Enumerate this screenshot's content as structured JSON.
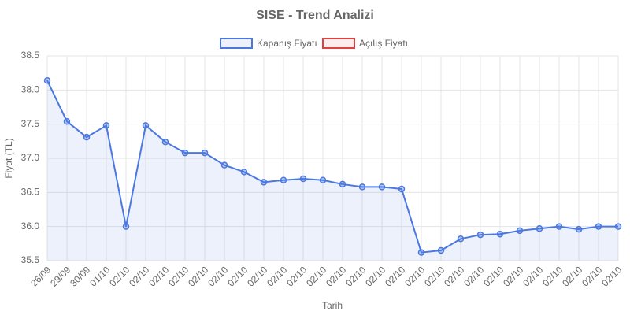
{
  "chart_data": {
    "type": "line",
    "title": "SISE - Trend Analizi",
    "x_label": "Tarih",
    "y_label": "Fiyat (TL)",
    "categories": [
      "26/09",
      "29/09",
      "30/09",
      "01/10",
      "02/10",
      "02/10",
      "02/10",
      "02/10",
      "02/10",
      "02/10",
      "02/10",
      "02/10",
      "02/10",
      "02/10",
      "02/10",
      "02/10",
      "02/10",
      "02/10",
      "02/10",
      "02/10",
      "02/10",
      "02/10",
      "02/10",
      "02/10",
      "02/10",
      "02/10",
      "02/10",
      "02/10",
      "02/10",
      "02/10"
    ],
    "series": [
      {
        "name": "Kapanış Fiyatı",
        "color": "#4a78e0",
        "fill": "rgba(74,120,224,0.1)",
        "values": [
          38.14,
          37.54,
          37.31,
          37.48,
          36.0,
          37.48,
          37.24,
          37.08,
          37.08,
          36.9,
          36.8,
          36.65,
          36.68,
          36.7,
          36.68,
          36.62,
          36.58,
          36.58,
          36.55,
          35.62,
          35.65,
          35.82,
          35.88,
          35.89,
          35.94,
          35.97,
          36.0,
          35.96,
          36.0,
          36.0
        ]
      },
      {
        "name": "Açılış Fiyatı",
        "color": "#e04040",
        "fill": "rgba(224,64,64,0.1)",
        "values": [
          null,
          null,
          null,
          null,
          null,
          null,
          null,
          null,
          null,
          null,
          null,
          null,
          null,
          null,
          null,
          null,
          null,
          null,
          null,
          null,
          null,
          null,
          null,
          null,
          null,
          null,
          null,
          null,
          null,
          null
        ]
      }
    ],
    "ylim": [
      35.5,
      38.5
    ],
    "yticks": [
      35.5,
      {
        "value": 36,
        "label": "36.0"
      },
      36.5,
      {
        "value": 37,
        "label": "37.0"
      },
      37.5,
      {
        "value": 38,
        "label": "38.0"
      },
      38.5
    ],
    "grid": true,
    "legend": "top"
  }
}
